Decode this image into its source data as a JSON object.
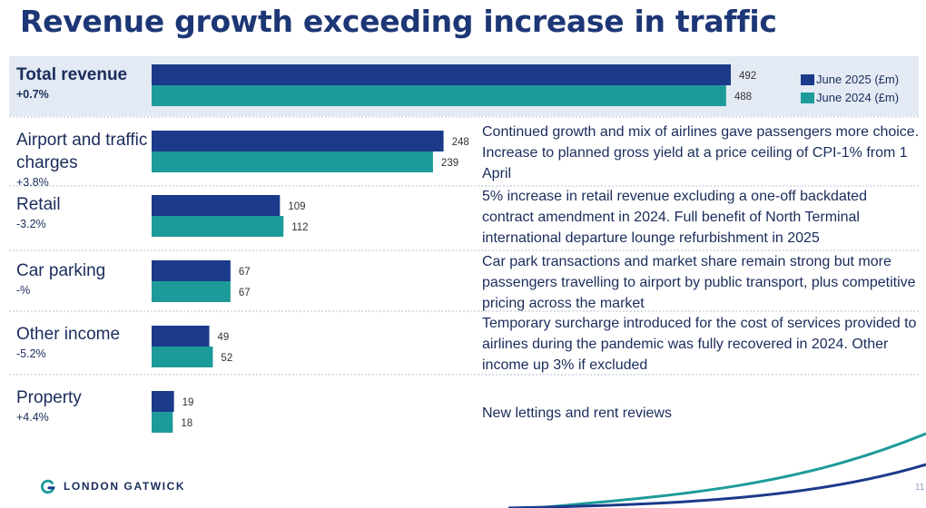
{
  "title": "Revenue growth exceeding increase in traffic",
  "colors": {
    "title": "#1d3776",
    "navy": "#1b3a8a",
    "teal": "#1d9b9a",
    "total_band": "#e3eaf4",
    "text": "#1a2c5b",
    "divider": "#b6bfcf"
  },
  "legend": [
    {
      "label": "June 2025 (£m)",
      "color": "#1b3a8a"
    },
    {
      "label": "June 2024 (£m)",
      "color": "#1d9b9a"
    }
  ],
  "rows": [
    {
      "label": "Total revenue",
      "change": "+0.7%",
      "v2025": "492",
      "v2024": "488",
      "comment": ""
    },
    {
      "label": "Airport and traffic charges",
      "change": "+3.8%",
      "v2025": "248",
      "v2024": "239",
      "comment": "Continued growth and mix of airlines gave passengers more choice. Increase to planned gross yield at a price ceiling of CPI-1% from 1 April"
    },
    {
      "label": "Retail",
      "change": "-3.2%",
      "v2025": "109",
      "v2024": "112",
      "comment": "5% increase in retail revenue excluding a one-off backdated contract amendment in 2024. Full benefit of North Terminal international departure lounge refurbishment in 2025"
    },
    {
      "label": "Car parking",
      "change": "-%",
      "v2025": "67",
      "v2024": "67",
      "comment": "Car park transactions and market share remain strong but more passengers travelling to airport by public transport, plus competitive pricing across the market"
    },
    {
      "label": "Other income",
      "change": "-5.2%",
      "v2025": "49",
      "v2024": "52",
      "comment": "Temporary surcharge introduced for the cost of services provided to airlines during the pandemic was fully recovered in 2024. Other income up 3% if excluded"
    },
    {
      "label": "Property",
      "change": "+4.4%",
      "v2025": "19",
      "v2024": "18",
      "comment": "New lettings and rent reviews"
    }
  ],
  "chart_data": {
    "type": "bar",
    "orientation": "horizontal",
    "categories": [
      "Total revenue",
      "Airport and traffic charges",
      "Retail",
      "Car parking",
      "Other income",
      "Property"
    ],
    "series": [
      {
        "name": "June 2025 (£m)",
        "values": [
          492,
          248,
          109,
          67,
          49,
          19
        ]
      },
      {
        "name": "June 2024 (£m)",
        "values": [
          488,
          239,
          112,
          67,
          52,
          18
        ]
      }
    ],
    "xlim": [
      0,
      492
    ],
    "grid": false,
    "legend_position": "top-right"
  },
  "footer": {
    "brand": "LONDON GATWICK",
    "page": "11"
  }
}
